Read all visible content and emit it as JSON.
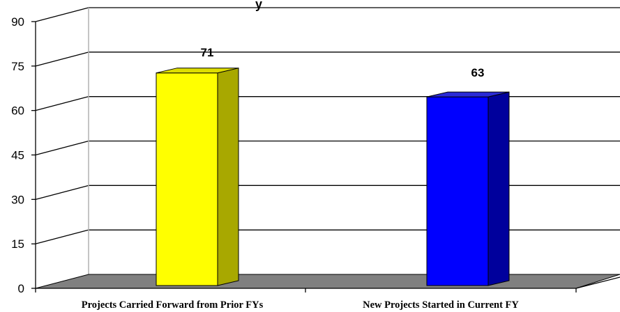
{
  "chart_data": {
    "type": "bar",
    "title_fragment": "y",
    "categories": [
      "Projects Carried Forward from Prior FYs",
      "New Projects Started in Current FY"
    ],
    "values": [
      71,
      63
    ],
    "ylim": [
      0,
      90
    ],
    "yticks": [
      0,
      15,
      30,
      45,
      60,
      75,
      90
    ],
    "grid": true,
    "three_d": true,
    "colors": {
      "bar_fronts": [
        "#ffff00",
        "#0000ff"
      ],
      "bar_sides": [
        "#a8a800",
        "#00009c"
      ],
      "bar_tops": [
        "#dede00",
        "#2a2ad6"
      ],
      "floor": "#808080"
    }
  }
}
